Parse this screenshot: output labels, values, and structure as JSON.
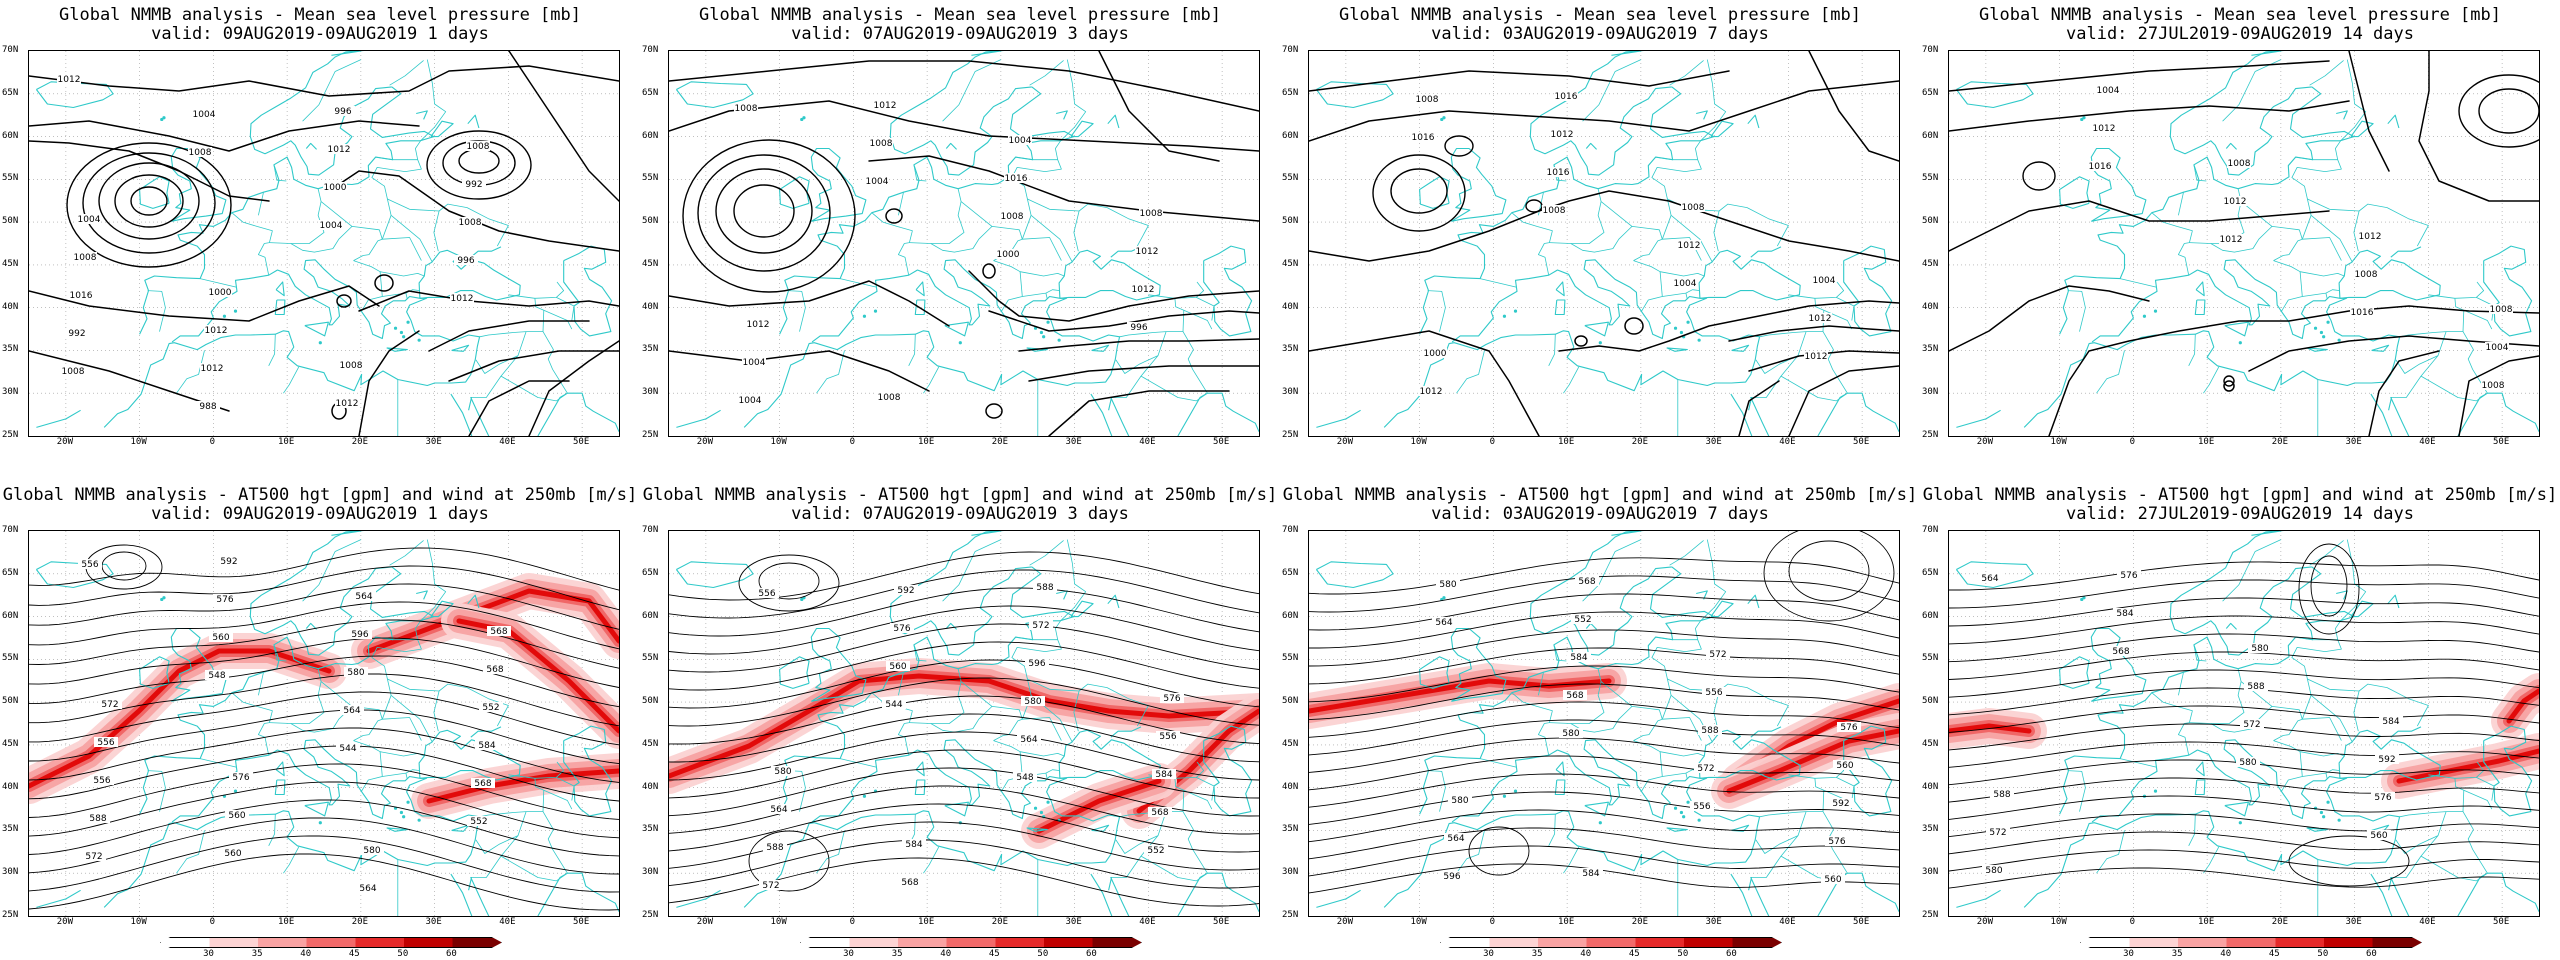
{
  "panels": [
    {
      "id": "p1",
      "title": "Global NMMB analysis - Mean sea level pressure [mb]",
      "subtitle": "valid: 09AUG2019-09AUG2019   1 days",
      "kind": "mslp",
      "labels": [
        "1012",
        "1008",
        "1004",
        "1012",
        "1008",
        "1004",
        "1000",
        "996",
        "992",
        "988",
        "1012",
        "1008",
        "1016",
        "1012",
        "996",
        "992",
        "1008",
        "1012",
        "1012",
        "1008",
        "1004",
        "1000",
        "1008"
      ]
    },
    {
      "id": "p2",
      "title": "Global NMMB analysis - Mean sea level pressure [mb]",
      "subtitle": "valid: 07AUG2019-09AUG2019   3 days",
      "kind": "mslp",
      "labels": [
        "1008",
        "1004",
        "1000",
        "996",
        "1004",
        "1008",
        "1008",
        "1012",
        "1004",
        "1012",
        "1016",
        "1012",
        "1012",
        "1008",
        "1004",
        "1008"
      ]
    },
    {
      "id": "p3",
      "title": "Global NMMB analysis - Mean sea level pressure [mb]",
      "subtitle": "valid: 03AUG2019-09AUG2019   7 days",
      "kind": "mslp",
      "labels": [
        "1016",
        "1008",
        "1004",
        "1012",
        "1008",
        "1016",
        "1012",
        "1012",
        "1012",
        "1012",
        "1008",
        "1004",
        "1000",
        "1016"
      ]
    },
    {
      "id": "p4",
      "title": "Global NMMB analysis - Mean sea level pressure [mb]",
      "subtitle": "valid: 27JUL2019-09AUG2019   14 days",
      "kind": "mslp",
      "labels": [
        "1016",
        "1012",
        "1016",
        "1008",
        "1012",
        "1012",
        "1008",
        "1004",
        "1004",
        "1008",
        "1012",
        "1008"
      ]
    },
    {
      "id": "p5",
      "title": "Global NMMB analysis - AT500 hgt [gpm] and wind at 250mb [m/s]",
      "subtitle": "valid: 09AUG2019-09AUG2019   1 days",
      "kind": "z500",
      "labels": [
        "548",
        "544",
        "552",
        "556",
        "560",
        "564",
        "568",
        "572",
        "576",
        "580",
        "584",
        "588",
        "592",
        "596",
        "552",
        "556",
        "560",
        "564",
        "568",
        "556",
        "560",
        "564",
        "568",
        "572",
        "576",
        "580"
      ]
    },
    {
      "id": "p6",
      "title": "Global NMMB analysis - AT500 hgt [gpm] and wind at 250mb [m/s]",
      "subtitle": "valid: 07AUG2019-09AUG2019   3 days",
      "kind": "z500",
      "labels": [
        "544",
        "548",
        "552",
        "556",
        "560",
        "564",
        "568",
        "572",
        "576",
        "580",
        "584",
        "588",
        "592",
        "596",
        "556",
        "564",
        "568",
        "572",
        "576",
        "580",
        "584",
        "588"
      ]
    },
    {
      "id": "p7",
      "title": "Global NMMB analysis - AT500 hgt [gpm] and wind at 250mb [m/s]",
      "subtitle": "valid: 03AUG2019-09AUG2019   7 days",
      "kind": "z500",
      "labels": [
        "580",
        "556",
        "560",
        "564",
        "568",
        "572",
        "576",
        "580",
        "584",
        "588",
        "592",
        "596",
        "552",
        "556",
        "560",
        "564",
        "568",
        "572",
        "576",
        "580",
        "584"
      ]
    },
    {
      "id": "p8",
      "title": "Global NMMB analysis - AT500 hgt [gpm] and wind at 250mb [m/s]",
      "subtitle": "valid: 27JUL2019-09AUG2019   14 days",
      "kind": "z500",
      "labels": [
        "580",
        "560",
        "564",
        "568",
        "572",
        "576",
        "580",
        "584",
        "588",
        "592",
        "572",
        "576",
        "580",
        "584",
        "588"
      ]
    }
  ],
  "lat_ticks": [
    "70N",
    "65N",
    "60N",
    "55N",
    "50N",
    "45N",
    "40N",
    "35N",
    "30N",
    "25N"
  ],
  "lon_ticks": [
    "20W",
    "10W",
    "0",
    "10E",
    "20E",
    "30E",
    "40E",
    "50E"
  ],
  "colorbar": {
    "labels": [
      "30",
      "35",
      "40",
      "45",
      "50",
      "60"
    ],
    "colors": [
      "#ffffff",
      "#fcd3d3",
      "#f9a3a3",
      "#f26a6a",
      "#e62a2a",
      "#c00000",
      "#7a0000"
    ]
  },
  "colors": {
    "coastline": "#2fc9c9",
    "contour": "#000000",
    "jet": "#e00000"
  }
}
